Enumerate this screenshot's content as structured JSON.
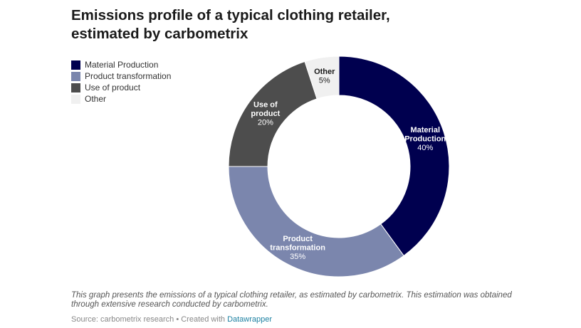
{
  "title_line1": "Emissions profile of a typical clothing retailer,",
  "title_line2": "estimated by carbometrix",
  "chart_data": {
    "type": "pie",
    "variant": "donut",
    "categories": [
      "Material Production",
      "Product transformation",
      "Use of product",
      "Other"
    ],
    "values": [
      40,
      35,
      20,
      5
    ],
    "unit": "%",
    "colors": [
      "#00004f",
      "#7b86ad",
      "#4d4d4d",
      "#f0f0f0"
    ],
    "label_text_colors": [
      "#ffffff",
      "#ffffff",
      "#ffffff",
      "#1a1a1a"
    ],
    "slice_labels": [
      {
        "lines": [
          "Material",
          "Production"
        ],
        "value": "40%"
      },
      {
        "lines": [
          "Product",
          "transformation"
        ],
        "value": "35%"
      },
      {
        "lines": [
          "Use of",
          "product"
        ],
        "value": "20%"
      },
      {
        "lines": [
          "Other"
        ],
        "value": "5%"
      }
    ],
    "legend_position": "top-left"
  },
  "notes": "This graph presents the emissions of a typical clothing retailer, as estimated by carbometrix. This estimation was obtained through extensive research conducted by carbometrix.",
  "source": {
    "text": "Source: carbometrix research • Created with ",
    "link_label": "Datawrapper"
  }
}
